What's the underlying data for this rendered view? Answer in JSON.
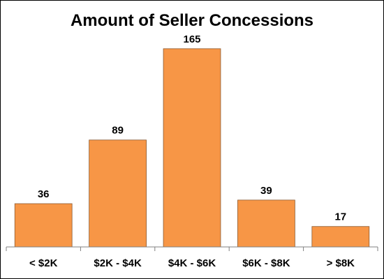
{
  "chart_data": {
    "type": "bar",
    "title": "Amount of Seller Concessions",
    "categories": [
      "< $2K",
      "$2K - $4K",
      "$4K - $6K",
      "$6K - $8K",
      "> $8K"
    ],
    "values": [
      36,
      89,
      165,
      39,
      17
    ],
    "xlabel": "",
    "ylabel": "",
    "ylim": [
      0,
      180
    ],
    "grid": false,
    "legend": "none",
    "data_labels": true,
    "colors": {
      "bar_fill": "#F79646",
      "bar_stroke": "#8C5A30",
      "axis": "#808080",
      "text": "#000000"
    }
  }
}
